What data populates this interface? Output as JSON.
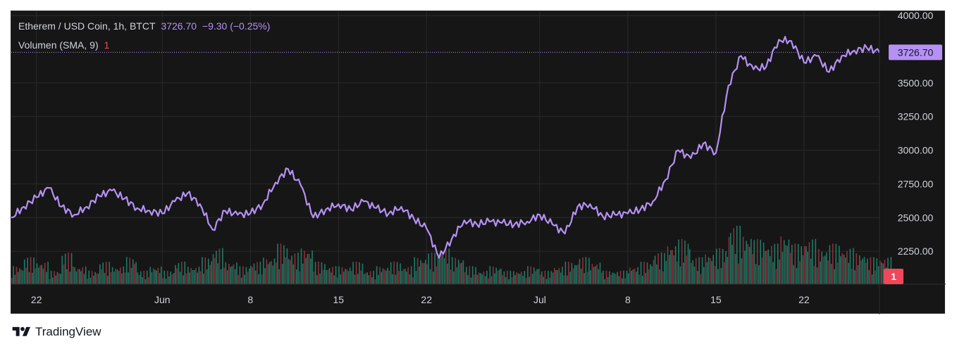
{
  "legend": {
    "symbol": "Etherem / USD Coin, 1h, BTCT",
    "last": "3726.70",
    "change": "−9.30 (−0.25%)",
    "volume_label": "Volumen (SMA, 9)",
    "volume_value": "1"
  },
  "brand": {
    "name": "TradingView"
  },
  "colors": {
    "price_line": "#b591f5",
    "price_tag_bg": "#b591f5",
    "volume_up": "#1e7a66",
    "volume_down": "#8e2f3a",
    "volume_tag_bg": "#f0475a",
    "background": "#161616",
    "grid": "#2a2a2a",
    "axis_text": "#d1d4dc"
  },
  "chart_data": {
    "type": "line",
    "grid": true,
    "y_axis": {
      "ticks": [
        2250,
        2500,
        2750,
        3000,
        3250,
        3500,
        4000
      ],
      "tick_labels": [
        "2250.00",
        "2500.00",
        "2750.00",
        "3000.00",
        "3250.00",
        "3500.00",
        "4000.00"
      ],
      "range": [
        2000,
        4000
      ],
      "last_price_label": "3726.70",
      "volume_label": "1"
    },
    "x_axis": {
      "tick_labels": [
        "22",
        "Jun",
        "8",
        "15",
        "22",
        "Jul",
        "8",
        "15",
        "22"
      ],
      "tick_dates": [
        "2024-05-22",
        "2024-06-01",
        "2024-06-08",
        "2024-06-15",
        "2024-06-22",
        "2024-07-01",
        "2024-07-08",
        "2024-07-15",
        "2024-07-22"
      ],
      "range": [
        "2024-05-20",
        "2024-07-28"
      ]
    },
    "series": [
      {
        "x": [
          "2024-05-20",
          "2024-05-21",
          "2024-05-22",
          "2024-05-23",
          "2024-05-24",
          "2024-05-25",
          "2024-05-26",
          "2024-05-27",
          "2024-05-28",
          "2024-05-29",
          "2024-05-30",
          "2024-05-31",
          "2024-06-01",
          "2024-06-02",
          "2024-06-03",
          "2024-06-04",
          "2024-06-05",
          "2024-06-06",
          "2024-06-07",
          "2024-06-08",
          "2024-06-09",
          "2024-06-10",
          "2024-06-11",
          "2024-06-12",
          "2024-06-13",
          "2024-06-14",
          "2024-06-15",
          "2024-06-16",
          "2024-06-17",
          "2024-06-18",
          "2024-06-19",
          "2024-06-20",
          "2024-06-21",
          "2024-06-22",
          "2024-06-23",
          "2024-06-24",
          "2024-06-25",
          "2024-06-26",
          "2024-06-27",
          "2024-06-28",
          "2024-06-29",
          "2024-06-30",
          "2024-07-01",
          "2024-07-02",
          "2024-07-03",
          "2024-07-04",
          "2024-07-05",
          "2024-07-06",
          "2024-07-07",
          "2024-07-08",
          "2024-07-09",
          "2024-07-10",
          "2024-07-11",
          "2024-07-12",
          "2024-07-13",
          "2024-07-14",
          "2024-07-15",
          "2024-07-16",
          "2024-07-17",
          "2024-07-18",
          "2024-07-19",
          "2024-07-20",
          "2024-07-21",
          "2024-07-22",
          "2024-07-23",
          "2024-07-24",
          "2024-07-25",
          "2024-07-26",
          "2024-07-27",
          "2024-07-28"
        ],
        "y": [
          2500,
          2580,
          2650,
          2720,
          2580,
          2520,
          2580,
          2660,
          2700,
          2640,
          2570,
          2550,
          2530,
          2620,
          2680,
          2600,
          2410,
          2550,
          2520,
          2530,
          2600,
          2760,
          2860,
          2740,
          2500,
          2560,
          2600,
          2560,
          2620,
          2570,
          2530,
          2580,
          2490,
          2420,
          2200,
          2340,
          2480,
          2450,
          2470,
          2460,
          2450,
          2470,
          2520,
          2450,
          2380,
          2580,
          2600,
          2510,
          2520,
          2530,
          2560,
          2620,
          2780,
          3000,
          2940,
          3050,
          2980,
          3480,
          3700,
          3600,
          3620,
          3820,
          3810,
          3650,
          3700,
          3580,
          3700,
          3740,
          3760,
          3726.7
        ]
      },
      {
        "name": "Volumen (SMA, 9)",
        "x": [
          "2024-05-20",
          "2024-05-21",
          "2024-05-22",
          "2024-05-23",
          "2024-05-24",
          "2024-05-25",
          "2024-05-26",
          "2024-05-27",
          "2024-05-28",
          "2024-05-29",
          "2024-05-30",
          "2024-05-31",
          "2024-06-01",
          "2024-06-02",
          "2024-06-03",
          "2024-06-04",
          "2024-06-05",
          "2024-06-06",
          "2024-06-07",
          "2024-06-08",
          "2024-06-09",
          "2024-06-10",
          "2024-06-11",
          "2024-06-12",
          "2024-06-13",
          "2024-06-14",
          "2024-06-15",
          "2024-06-16",
          "2024-06-17",
          "2024-06-18",
          "2024-06-19",
          "2024-06-20",
          "2024-06-21",
          "2024-06-22",
          "2024-06-23",
          "2024-06-24",
          "2024-06-25",
          "2024-06-26",
          "2024-06-27",
          "2024-06-28",
          "2024-06-29",
          "2024-06-30",
          "2024-07-01",
          "2024-07-02",
          "2024-07-03",
          "2024-07-04",
          "2024-07-05",
          "2024-07-06",
          "2024-07-07",
          "2024-07-08",
          "2024-07-09",
          "2024-07-10",
          "2024-07-11",
          "2024-07-12",
          "2024-07-13",
          "2024-07-14",
          "2024-07-15",
          "2024-07-16",
          "2024-07-17",
          "2024-07-18",
          "2024-07-19",
          "2024-07-20",
          "2024-07-21",
          "2024-07-22",
          "2024-07-23",
          "2024-07-24",
          "2024-07-25",
          "2024-07-26",
          "2024-07-27",
          "2024-07-28"
        ],
        "values": [
          0.4,
          0.6,
          0.5,
          0.3,
          0.7,
          0.4,
          0.3,
          0.5,
          0.4,
          0.6,
          0.3,
          0.4,
          0.3,
          0.5,
          0.4,
          0.6,
          0.8,
          0.5,
          0.4,
          0.5,
          0.6,
          0.9,
          0.7,
          0.8,
          0.5,
          0.4,
          0.4,
          0.5,
          0.3,
          0.4,
          0.5,
          0.4,
          0.6,
          0.7,
          0.8,
          0.6,
          0.4,
          0.3,
          0.4,
          0.3,
          0.3,
          0.4,
          0.3,
          0.4,
          0.5,
          0.6,
          0.5,
          0.3,
          0.3,
          0.4,
          0.5,
          0.7,
          0.9,
          1.0,
          0.6,
          0.7,
          0.8,
          1.3,
          1.1,
          1.0,
          0.9,
          1.1,
          0.9,
          1.0,
          0.8,
          0.9,
          0.8,
          0.7,
          0.6,
          0.6
        ]
      }
    ]
  }
}
